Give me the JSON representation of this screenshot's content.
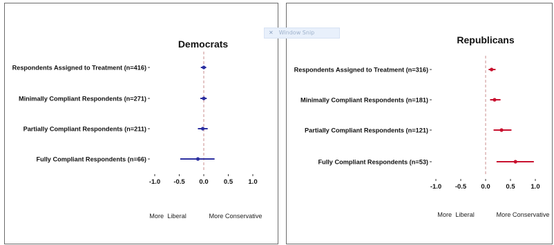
{
  "overlay": {
    "label": "Window Snip"
  },
  "chart_data": [
    {
      "type": "scatter",
      "title": "Democrats",
      "color": "#2b2fa0",
      "xlim": [
        -1.0,
        1.0
      ],
      "xticks": [
        "-1.0",
        "-0.5",
        "0.0",
        "0.5",
        "1.0"
      ],
      "xtick_values": [
        -1.0,
        -0.5,
        0.0,
        0.5,
        1.0
      ],
      "left_label": "More  Liberal",
      "right_label": "More Conservative",
      "reference_line": 0,
      "categories": [
        "Respondents Assigned to Treatment (n=416)",
        "Minimally Compliant Respondents (n=271)",
        "Partially Compliant Respondents (n=211)",
        "Fully Compliant Respondents (n=66)"
      ],
      "estimates": [
        0.0,
        0.0,
        -0.02,
        -0.12
      ],
      "ci_low": [
        -0.06,
        -0.07,
        -0.12,
        -0.48
      ],
      "ci_high": [
        0.05,
        0.06,
        0.08,
        0.22
      ]
    },
    {
      "type": "scatter",
      "title": "Republicans",
      "color": "#c8102e",
      "xlim": [
        -1.0,
        1.0
      ],
      "xticks": [
        "-1.0",
        "-0.5",
        "0.0",
        "0.5",
        "1.0"
      ],
      "xtick_values": [
        -1.0,
        -0.5,
        0.0,
        0.5,
        1.0
      ],
      "left_label": "More  Liberal",
      "right_label": "More Conservative",
      "reference_line": 0,
      "categories": [
        "Respondents Assigned to Treatment (n=316)",
        "Minimally Compliant Respondents (n=181)",
        "Partially Compliant Respondents (n=121)",
        "Fully Compliant Respondents (n=53)"
      ],
      "estimates": [
        0.12,
        0.18,
        0.32,
        0.6
      ],
      "ci_low": [
        0.06,
        0.09,
        0.16,
        0.22
      ],
      "ci_high": [
        0.2,
        0.3,
        0.52,
        0.97
      ]
    }
  ]
}
